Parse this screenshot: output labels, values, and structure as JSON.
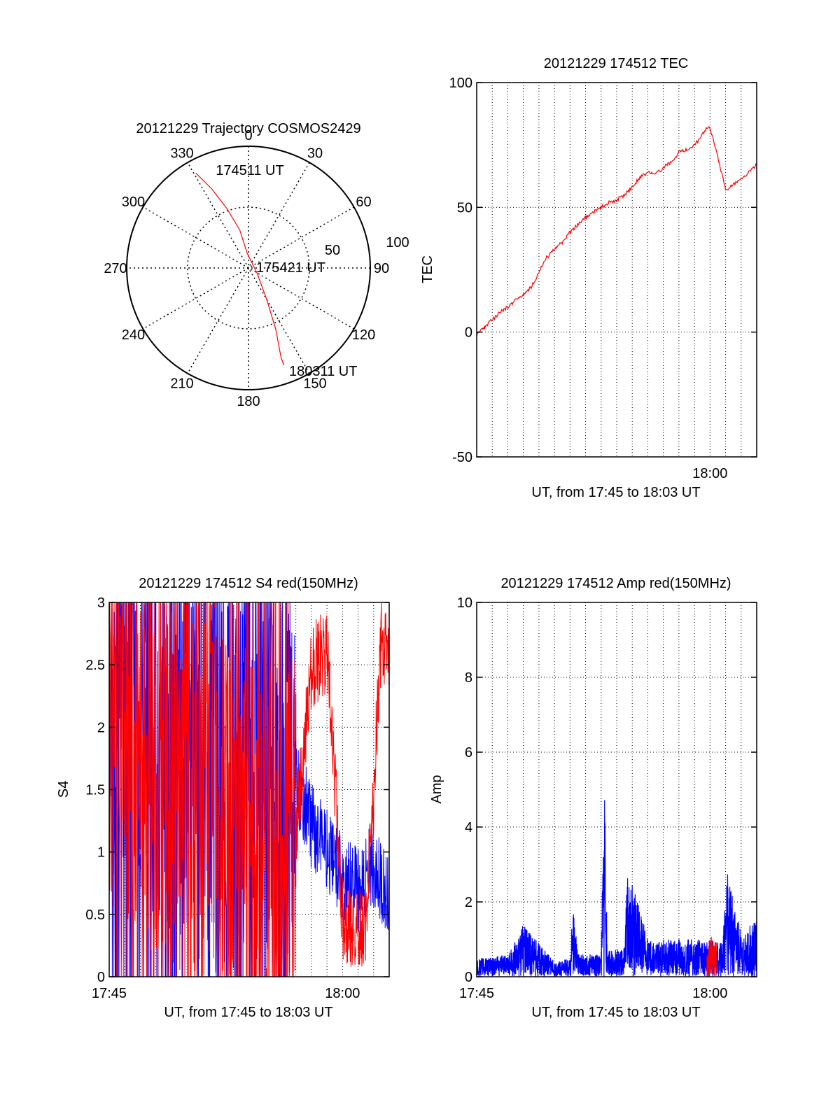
{
  "colors": {
    "red": "#ff0000",
    "blue": "#0000ff",
    "axis": "#000000"
  },
  "chart_data": [
    {
      "type": "polar",
      "title": "20121229 Trajectory COSMOS2429",
      "angle_labels": [
        "0",
        "30",
        "60",
        "90",
        "120",
        "150",
        "180",
        "210",
        "240",
        "270",
        "300",
        "330"
      ],
      "radial_labels": [
        "50",
        "100"
      ],
      "rlim": [
        0,
        100
      ],
      "series": [
        {
          "color": "#ff0000",
          "points": [
            [
              331,
              89
            ],
            [
              335,
              72
            ],
            [
              340,
              52
            ],
            [
              347,
              32
            ],
            [
              355,
              12
            ],
            [
              120,
              8
            ],
            [
              150,
              30
            ],
            [
              156,
              55
            ],
            [
              160,
              78
            ],
            [
              160,
              85
            ]
          ]
        }
      ],
      "annotations": [
        {
          "text": "174511 UT",
          "angle": 345,
          "r": 82
        },
        {
          "text": "175421 UT",
          "angle": 85,
          "r": 44
        },
        {
          "text": "180311 UT",
          "angle": 141,
          "r": 108
        }
      ]
    },
    {
      "type": "line",
      "title": "20121229 174512 TEC",
      "xlabel": "UT, from 17:45 to 18:03 UT",
      "ylabel": "TEC",
      "ylim": [
        -50,
        100
      ],
      "yticks": [
        -50,
        0,
        50,
        100
      ],
      "xticks": [
        {
          "value": 15,
          "label": "18:00"
        }
      ],
      "xlim": [
        0,
        18
      ],
      "grid": true,
      "series": [
        {
          "color": "#ff0000",
          "x": [
            0,
            0.5,
            1,
            1.5,
            2,
            2.5,
            3,
            3.5,
            4,
            4.5,
            5,
            5.5,
            6,
            6.5,
            7,
            7.5,
            8,
            8.5,
            9,
            9.5,
            10,
            10.5,
            11,
            11.5,
            12,
            12.5,
            13,
            13.5,
            14,
            14.5,
            14.8,
            15,
            15.5,
            16,
            16.5,
            17,
            17.5,
            18
          ],
          "values": [
            -1,
            2,
            5,
            8,
            10,
            13,
            15,
            18,
            24,
            30,
            33,
            36,
            40,
            43,
            46,
            48,
            50,
            52,
            53,
            55,
            58,
            62,
            64,
            63,
            66,
            68,
            72,
            73,
            75,
            79,
            82,
            82,
            70,
            57,
            59,
            61,
            64,
            67
          ]
        }
      ]
    },
    {
      "type": "line",
      "title": "20121229 174512 S4 red(150MHz)",
      "xlabel": "UT, from 17:45 to 18:03 UT",
      "ylabel": "S4",
      "ylim": [
        0,
        3
      ],
      "yticks": [
        "0",
        "0.5",
        "1",
        "1.5",
        "2",
        "2.5",
        "3"
      ],
      "xticks": [
        {
          "value": 0,
          "label": "17:45"
        },
        {
          "value": 15,
          "label": "18:00"
        }
      ],
      "xlim": [
        0,
        18
      ],
      "grid": true,
      "series": [
        {
          "color": "#0000ff",
          "x": [
            0,
            2,
            4,
            6,
            8,
            10,
            11,
            12,
            13,
            14,
            15,
            16,
            17,
            18
          ],
          "values": [
            2.3,
            2.1,
            1.9,
            1.8,
            1.6,
            1.5,
            1.4,
            1.6,
            1.2,
            1.0,
            0.8,
            0.7,
            0.9,
            0.6
          ]
        },
        {
          "color": "#ff0000",
          "x": [
            0,
            2,
            4,
            6,
            8,
            10,
            11,
            12,
            13,
            14,
            15,
            15.5,
            16,
            16.5,
            17,
            17.5,
            18
          ],
          "values": [
            2.0,
            1.8,
            1.7,
            1.5,
            1.3,
            1.0,
            0.9,
            1.1,
            2.5,
            2.6,
            0.45,
            0.38,
            0.35,
            0.4,
            1.5,
            2.7,
            2.5
          ]
        }
      ]
    },
    {
      "type": "line",
      "title": "20121229 174512 Amp red(150MHz)",
      "xlabel": "UT, from 17:45 to 18:03 UT",
      "ylabel": "Amp",
      "ylim": [
        0,
        10
      ],
      "yticks": [
        0,
        2,
        4,
        6,
        8,
        10
      ],
      "xticks": [
        {
          "value": 0,
          "label": "17:45"
        },
        {
          "value": 15,
          "label": "18:00"
        }
      ],
      "xlim": [
        0,
        18
      ],
      "grid": true,
      "series": [
        {
          "color": "#0000ff",
          "x": [
            0,
            2,
            3,
            5,
            6,
            6.2,
            6.5,
            8,
            8.2,
            8.4,
            9.5,
            9.7,
            11,
            13,
            15,
            15.8,
            16.1,
            17,
            18
          ],
          "values": [
            0.5,
            0.6,
            1.4,
            0.4,
            0.5,
            2.0,
            0.6,
            0.6,
            5.5,
            0.7,
            0.8,
            3.0,
            1.0,
            1.0,
            1.0,
            0.9,
            2.8,
            1.2,
            1.5
          ]
        },
        {
          "color": "#ff0000",
          "x": [
            14.8,
            15.1,
            15.4
          ],
          "values": [
            0.9,
            1.1,
            0.9
          ]
        }
      ]
    }
  ]
}
